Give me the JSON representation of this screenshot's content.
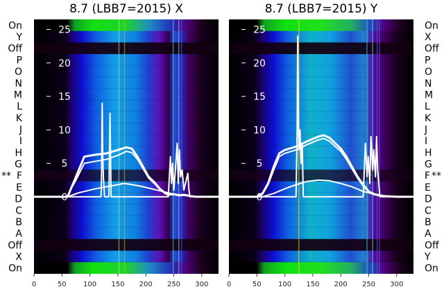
{
  "chart_data": [
    {
      "type": "heatmap",
      "title": "8.7 (LBB7=2015) X",
      "xlabel": "",
      "ylabel": "",
      "xlim": [
        0,
        330
      ],
      "ylim": [
        -11.5,
        26.5
      ],
      "x_ticks": [
        "0",
        "50",
        "100",
        "150",
        "200",
        "250",
        "300"
      ],
      "y_ticks": [
        "0",
        "5",
        "10",
        "15",
        "20",
        "25"
      ],
      "row_labels": [
        "On",
        "Y",
        "Off",
        "P",
        "O",
        "N",
        "M",
        "L",
        "K",
        "J",
        "I",
        "H",
        "G",
        "F",
        "E",
        "D",
        "C",
        "B",
        "A",
        "Off",
        "X",
        "On"
      ],
      "marked_row_label": "**",
      "marked_row": "F",
      "series": [
        {
          "x": [
            0,
            60,
            65,
            75,
            90,
            110,
            130,
            150,
            165,
            175,
            185,
            195,
            205,
            215,
            225,
            235,
            240,
            250,
            260,
            268,
            275,
            280,
            290,
            330
          ],
          "y": [
            0,
            0,
            1,
            3,
            6,
            6.3,
            6.5,
            7,
            7.4,
            7.2,
            6,
            4.5,
            3,
            2.2,
            1.2,
            0.5,
            0.3,
            0.4,
            0.2,
            0.3,
            0.2,
            0.1,
            0,
            0
          ]
        },
        {
          "x": [
            0,
            60,
            65,
            75,
            90,
            110,
            130,
            150,
            165,
            175,
            185,
            195,
            205,
            215,
            225,
            235,
            240,
            250,
            260,
            268,
            275,
            280,
            290,
            330
          ],
          "y": [
            0,
            0,
            1,
            2.5,
            5,
            5.3,
            5.6,
            6.2,
            6.8,
            6.6,
            5.6,
            4.2,
            2.8,
            2,
            1.1,
            0.5,
            0.3,
            0.4,
            0.2,
            0.3,
            0.2,
            0.1,
            0,
            0
          ]
        },
        {
          "x": [
            0,
            60,
            70,
            80,
            90,
            100,
            110,
            130,
            150,
            160,
            170,
            190,
            210,
            230,
            250,
            270,
            290,
            330
          ],
          "y": [
            0,
            0,
            0.3,
            0.6,
            0.8,
            1,
            1.2,
            1.5,
            1.8,
            2,
            1.9,
            1.6,
            1.2,
            0.8,
            0.4,
            0.2,
            0,
            0
          ]
        },
        {
          "x": [
            0,
            120,
            121,
            122,
            123,
            124,
            125,
            126,
            134,
            135,
            136,
            137,
            138,
            240,
            244,
            246,
            248,
            250,
            252,
            256,
            258,
            260,
            262,
            265,
            268,
            275,
            277,
            279,
            281,
            330
          ],
          "y": [
            0,
            0,
            4,
            14,
            6,
            3,
            1.5,
            0,
            0,
            7,
            12.5,
            6,
            0,
            0,
            6,
            2,
            5,
            1,
            3,
            8,
            2,
            7,
            3,
            4,
            1,
            3.5,
            1,
            0,
            0,
            0
          ]
        }
      ]
    },
    {
      "type": "heatmap",
      "title": "8.7 (LBB7=2015) Y",
      "xlabel": "",
      "ylabel": "",
      "xlim": [
        0,
        330
      ],
      "ylim": [
        -11.5,
        26.5
      ],
      "x_ticks": [
        "0",
        "50",
        "100",
        "150",
        "200",
        "250",
        "300"
      ],
      "y_ticks": [
        "0",
        "5",
        "10",
        "15",
        "20",
        "25"
      ],
      "row_labels": [
        "On",
        "X",
        "Off",
        "P",
        "O",
        "N",
        "M",
        "L",
        "K",
        "J",
        "I",
        "H",
        "G",
        "F",
        "E",
        "D",
        "C",
        "B",
        "A",
        "Off",
        "Y",
        "On"
      ],
      "marked_row_label": "**",
      "marked_row": "F",
      "series": [
        {
          "x": [
            0,
            50,
            60,
            70,
            80,
            90,
            100,
            120,
            140,
            160,
            170,
            180,
            190,
            200,
            210,
            220,
            230,
            240,
            250,
            260,
            270,
            280,
            300,
            330
          ],
          "y": [
            0,
            0,
            0.5,
            2,
            4.5,
            6.5,
            7,
            7.5,
            8.3,
            9,
            9.2,
            8.8,
            8,
            7.2,
            6,
            4.5,
            3,
            1.8,
            0.8,
            0.4,
            0.2,
            0.1,
            0,
            0
          ]
        },
        {
          "x": [
            0,
            50,
            60,
            70,
            80,
            90,
            100,
            120,
            140,
            160,
            170,
            180,
            190,
            200,
            210,
            220,
            230,
            240,
            250,
            260,
            270,
            280,
            300,
            330
          ],
          "y": [
            0,
            0,
            0.4,
            1.8,
            4,
            6,
            6.5,
            7,
            7.8,
            8.5,
            8.7,
            8.3,
            7.5,
            6.8,
            5.6,
            4.2,
            2.8,
            1.6,
            0.7,
            0.3,
            0.2,
            0.1,
            0,
            0
          ]
        },
        {
          "x": [
            0,
            60,
            80,
            100,
            120,
            140,
            160,
            180,
            200,
            220,
            240,
            260,
            280,
            300,
            330
          ],
          "y": [
            0,
            0,
            0.5,
            1.2,
            1.8,
            2.3,
            2.5,
            2.4,
            2,
            1.5,
            0.8,
            0.4,
            0.1,
            0,
            0
          ]
        },
        {
          "x": [
            0,
            120,
            122,
            123,
            124,
            125,
            127,
            129,
            131,
            133,
            240,
            244,
            247,
            249,
            252,
            254,
            257,
            259,
            262,
            264,
            266,
            270,
            330
          ],
          "y": [
            0,
            0,
            10,
            24,
            14,
            7,
            10,
            5,
            8,
            0,
            0,
            8,
            3,
            6,
            2,
            9,
            4,
            7,
            3,
            9,
            4,
            0,
            0
          ]
        }
      ]
    }
  ]
}
